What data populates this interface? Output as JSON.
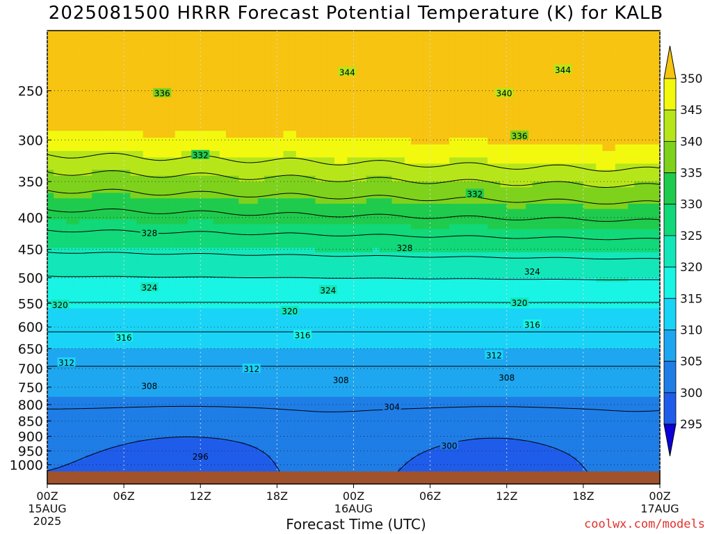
{
  "title": "2025081500 HRRR Forecast Potential Temperature (K) for KALB",
  "credit": "coolwx.com/models",
  "chart_data": {
    "type": "heatmap",
    "title": "2025081500 HRRR Forecast Potential Temperature (K) for KALB",
    "xlabel": "Forecast Time (UTC)",
    "ylabel": "",
    "y_scale": "log",
    "y_reversed": true,
    "xlim_hours": [
      0,
      48
    ],
    "ylim": [
      1025,
      200
    ],
    "x_ticks": [
      {
        "hour": 0,
        "label": "00Z",
        "sub": [
          "15AUG",
          "2025"
        ]
      },
      {
        "hour": 6,
        "label": "06Z",
        "sub": []
      },
      {
        "hour": 12,
        "label": "12Z",
        "sub": []
      },
      {
        "hour": 18,
        "label": "18Z",
        "sub": []
      },
      {
        "hour": 24,
        "label": "00Z",
        "sub": [
          "16AUG"
        ]
      },
      {
        "hour": 30,
        "label": "06Z",
        "sub": []
      },
      {
        "hour": 36,
        "label": "12Z",
        "sub": []
      },
      {
        "hour": 42,
        "label": "18Z",
        "sub": []
      },
      {
        "hour": 48,
        "label": "00Z",
        "sub": [
          "17AUG"
        ]
      }
    ],
    "y_ticks": [
      250,
      300,
      350,
      400,
      450,
      500,
      550,
      600,
      650,
      700,
      750,
      800,
      850,
      900,
      950,
      1000
    ],
    "colorbar": {
      "levels": [
        295,
        300,
        305,
        310,
        315,
        320,
        325,
        330,
        335,
        340,
        345,
        350
      ],
      "labels": [
        "295",
        "300",
        "305",
        "310",
        "315",
        "320",
        "325",
        "330",
        "335",
        "340",
        "345",
        "350"
      ],
      "colors": [
        "#0b00d8",
        "#1a2ee8",
        "#1f5cea",
        "#1f7de6",
        "#1ea7f0",
        "#1ad4f7",
        "#19f4e4",
        "#13e7b9",
        "#11d879",
        "#1fcb4c",
        "#7ed21c",
        "#b6e61a",
        "#f2f90f",
        "#f6c411"
      ]
    },
    "contour_levels": [
      296,
      300,
      304,
      308,
      312,
      316,
      320,
      324,
      328,
      332,
      336,
      340,
      344
    ],
    "contour_labels": [
      {
        "value": 344,
        "hour": 23.5,
        "p": 233
      },
      {
        "value": 344,
        "hour": 40.4,
        "p": 231
      },
      {
        "value": 336,
        "hour": 9.0,
        "p": 252
      },
      {
        "value": 340,
        "hour": 35.8,
        "p": 252
      },
      {
        "value": 336,
        "hour": 37.0,
        "p": 295
      },
      {
        "value": 332,
        "hour": 12.0,
        "p": 317
      },
      {
        "value": 332,
        "hour": 33.5,
        "p": 366
      },
      {
        "value": 328,
        "hour": 8.0,
        "p": 423
      },
      {
        "value": 328,
        "hour": 28.0,
        "p": 447
      },
      {
        "value": 324,
        "hour": 38.0,
        "p": 488
      },
      {
        "value": 324,
        "hour": 8.0,
        "p": 518
      },
      {
        "value": 324,
        "hour": 22.0,
        "p": 523
      },
      {
        "value": 320,
        "hour": 1.0,
        "p": 552
      },
      {
        "value": 320,
        "hour": 19.0,
        "p": 565
      },
      {
        "value": 320,
        "hour": 37.0,
        "p": 548
      },
      {
        "value": 316,
        "hour": 38.0,
        "p": 594
      },
      {
        "value": 316,
        "hour": 6.0,
        "p": 623
      },
      {
        "value": 316,
        "hour": 20.0,
        "p": 618
      },
      {
        "value": 312,
        "hour": 1.5,
        "p": 684
      },
      {
        "value": 312,
        "hour": 16.0,
        "p": 700
      },
      {
        "value": 312,
        "hour": 35.0,
        "p": 666
      },
      {
        "value": 308,
        "hour": 8.0,
        "p": 746
      },
      {
        "value": 308,
        "hour": 23.0,
        "p": 729
      },
      {
        "value": 308,
        "hour": 36.0,
        "p": 723
      },
      {
        "value": 304,
        "hour": 27.0,
        "p": 806
      },
      {
        "value": 300,
        "hour": 31.5,
        "p": 930
      },
      {
        "value": 296,
        "hour": 12.0,
        "p": 968
      }
    ],
    "grid": true,
    "legend": "right"
  }
}
